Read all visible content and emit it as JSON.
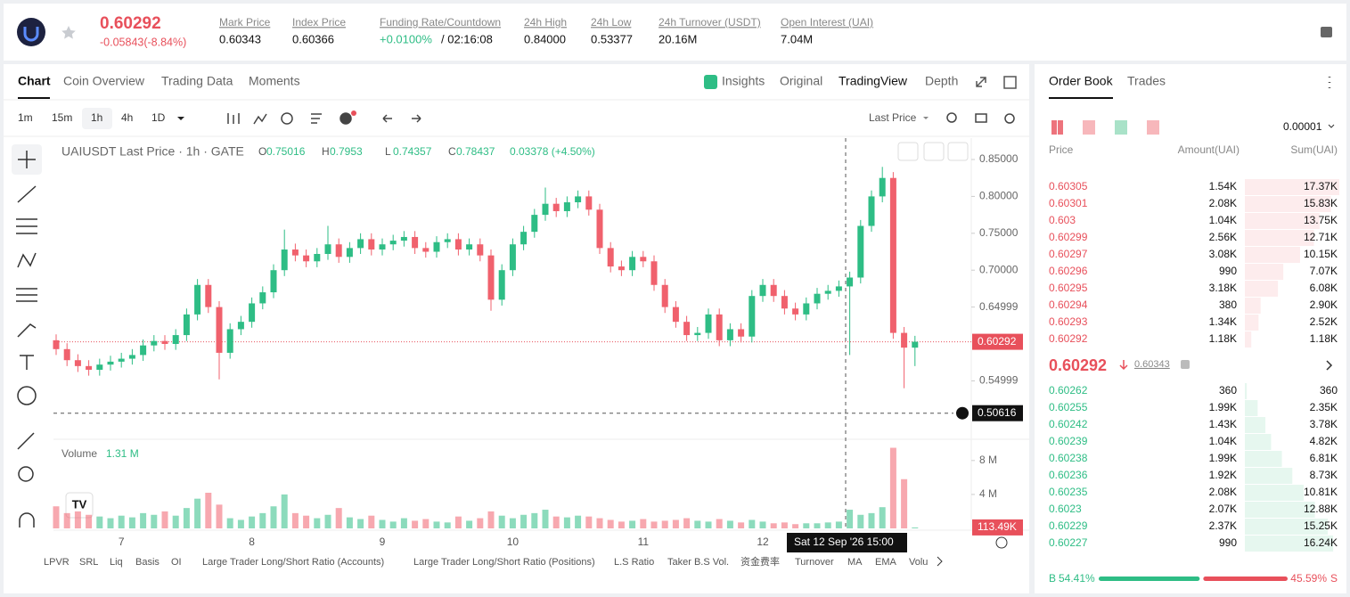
{
  "header": {
    "price": 0.60292,
    "change": "-0.05843(-8.84%)",
    "stats": [
      {
        "label": "Mark Price",
        "value": "0.60343"
      },
      {
        "label": "Index Price",
        "value": "0.60366"
      },
      {
        "label": "Funding Rate/Countdown",
        "value": "+0.0100%",
        "extra": "/ 02:16:08"
      },
      {
        "label": "24h High",
        "value": "0.84000"
      },
      {
        "label": "24h Low",
        "value": "0.53377"
      },
      {
        "label": "24h Turnover (USDT)",
        "value": "20.16M"
      },
      {
        "label": "Open Interest (UAI)",
        "value": "7.04M"
      }
    ]
  },
  "tabs": [
    "Chart",
    "Coin Overview",
    "Trading Data",
    "Moments"
  ],
  "view_tabs": [
    "Insights",
    "Original",
    "TradingView",
    "Depth"
  ],
  "intervals": [
    "1m",
    "15m",
    "1h",
    "4h",
    "1D"
  ],
  "price_type": "Last Price",
  "chart_data": {
    "type": "candlestick",
    "title": "UAIUSDT Last Price · 1h · GATE",
    "ohlc": [
      {
        "label": "O",
        "value": 0.75016
      },
      {
        "label": "H",
        "value": 0.7953
      },
      {
        "label": "L",
        "value": 0.74357
      },
      {
        "label": "C",
        "value": 0.78437
      }
    ],
    "ohlc_change": "0.03378 (+4.50%)",
    "up_color": "#2ebd85",
    "down_color": "#f0616d",
    "categories": [
      null,
      null,
      null,
      null,
      null,
      null,
      "7",
      null,
      null,
      null,
      null,
      null,
      null,
      null,
      null,
      null,
      null,
      null,
      "8",
      null,
      null,
      null,
      null,
      null,
      null,
      null,
      null,
      null,
      null,
      null,
      "9",
      null,
      null,
      null,
      null,
      null,
      null,
      null,
      null,
      null,
      null,
      null,
      "10",
      null,
      null,
      null,
      null,
      null,
      null,
      null,
      null,
      null,
      null,
      null,
      "11",
      null,
      null,
      null,
      null,
      null,
      null,
      null,
      null,
      null,
      null,
      "12",
      null,
      null,
      null,
      null,
      null,
      null,
      null,
      null,
      null,
      null,
      null,
      null,
      null,
      null
    ],
    "open": [
      0.605,
      0.593,
      0.578,
      0.57,
      0.565,
      0.572,
      0.576,
      0.58,
      0.585,
      0.598,
      0.604,
      0.6,
      0.612,
      0.64,
      0.68,
      0.65,
      0.588,
      0.62,
      0.63,
      0.655,
      0.67,
      0.7,
      0.728,
      0.72,
      0.712,
      0.722,
      0.735,
      0.718,
      0.73,
      0.742,
      0.728,
      0.735,
      0.74,
      0.745,
      0.73,
      0.725,
      0.738,
      0.742,
      0.728,
      0.735,
      0.72,
      0.66,
      0.7,
      0.735,
      0.752,
      0.775,
      0.79,
      0.78,
      0.792,
      0.8,
      0.782,
      0.73,
      0.705,
      0.7,
      0.718,
      0.712,
      0.68,
      0.65,
      0.63,
      0.612,
      0.615,
      0.64,
      0.605,
      0.62,
      0.61,
      0.665,
      0.68,
      0.665,
      0.648,
      0.64,
      0.655,
      0.668,
      0.672,
      0.678,
      0.69,
      0.76,
      0.8,
      0.825,
      0.615,
      0.595
    ],
    "high": [
      0.613,
      0.601,
      0.586,
      0.578,
      0.58,
      0.584,
      0.588,
      0.593,
      0.606,
      0.612,
      0.612,
      0.62,
      0.648,
      0.688,
      0.688,
      0.658,
      0.628,
      0.638,
      0.663,
      0.678,
      0.708,
      0.755,
      0.736,
      0.728,
      0.73,
      0.76,
      0.743,
      0.738,
      0.75,
      0.75,
      0.743,
      0.748,
      0.753,
      0.753,
      0.738,
      0.746,
      0.75,
      0.75,
      0.743,
      0.743,
      0.728,
      0.708,
      0.743,
      0.76,
      0.783,
      0.812,
      0.798,
      0.8,
      0.808,
      0.808,
      0.79,
      0.738,
      0.713,
      0.726,
      0.726,
      0.72,
      0.688,
      0.658,
      0.638,
      0.623,
      0.648,
      0.648,
      0.628,
      0.628,
      0.673,
      0.688,
      0.688,
      0.673,
      0.656,
      0.663,
      0.676,
      0.68,
      0.686,
      0.698,
      0.768,
      0.808,
      0.84,
      0.833,
      0.623,
      0.611
    ],
    "low": [
      0.585,
      0.57,
      0.562,
      0.557,
      0.557,
      0.564,
      0.568,
      0.572,
      0.577,
      0.59,
      0.592,
      0.592,
      0.604,
      0.632,
      0.642,
      0.552,
      0.58,
      0.612,
      0.622,
      0.647,
      0.662,
      0.692,
      0.712,
      0.704,
      0.704,
      0.714,
      0.71,
      0.71,
      0.722,
      0.72,
      0.72,
      0.727,
      0.732,
      0.722,
      0.717,
      0.717,
      0.73,
      0.72,
      0.72,
      0.712,
      0.645,
      0.652,
      0.692,
      0.727,
      0.744,
      0.767,
      0.772,
      0.772,
      0.784,
      0.774,
      0.722,
      0.697,
      0.692,
      0.692,
      0.704,
      0.672,
      0.642,
      0.622,
      0.604,
      0.604,
      0.607,
      0.597,
      0.597,
      0.602,
      0.602,
      0.657,
      0.657,
      0.64,
      0.632,
      0.632,
      0.647,
      0.66,
      0.664,
      0.585,
      0.682,
      0.752,
      0.792,
      0.607,
      0.54,
      0.57
    ],
    "close": [
      0.593,
      0.578,
      0.57,
      0.565,
      0.572,
      0.576,
      0.58,
      0.585,
      0.598,
      0.604,
      0.6,
      0.612,
      0.64,
      0.68,
      0.65,
      0.588,
      0.62,
      0.63,
      0.655,
      0.67,
      0.7,
      0.728,
      0.72,
      0.712,
      0.722,
      0.735,
      0.718,
      0.73,
      0.742,
      0.728,
      0.735,
      0.74,
      0.745,
      0.73,
      0.725,
      0.738,
      0.742,
      0.728,
      0.735,
      0.72,
      0.66,
      0.7,
      0.735,
      0.752,
      0.775,
      0.79,
      0.78,
      0.792,
      0.8,
      0.782,
      0.73,
      0.705,
      0.7,
      0.718,
      0.712,
      0.68,
      0.65,
      0.63,
      0.612,
      0.615,
      0.64,
      0.605,
      0.62,
      0.61,
      0.665,
      0.68,
      0.665,
      0.648,
      0.64,
      0.655,
      0.668,
      0.672,
      0.678,
      0.69,
      0.76,
      0.8,
      0.825,
      0.615,
      0.595,
      0.603
    ],
    "ylim": [
      0.4744,
      0.879
    ],
    "yticks": [
      {
        "value": 0.85,
        "label": "0.85000"
      },
      {
        "value": 0.8,
        "label": "0.80000"
      },
      {
        "value": 0.75,
        "label": "0.75000"
      },
      {
        "value": 0.7,
        "label": "0.70000"
      },
      0.64999,
      0.54999
    ],
    "last_price": 0.60292,
    "crosshair_price": 0.50616,
    "crosshair_label": "Sat 12 Sep '26   15:00",
    "volume": {
      "title": "Volume",
      "current": "1.31 M",
      "ylim": [
        0,
        10.5
      ],
      "yticks": [
        {
          "value": 4,
          "label": "4 M"
        },
        {
          "value": 8,
          "label": "8 M"
        }
      ],
      "values": [
        2.6,
        1.8,
        2.0,
        1.6,
        1.4,
        1.2,
        1.5,
        1.3,
        1.8,
        1.6,
        2.0,
        1.5,
        2.4,
        3.5,
        4.2,
        2.8,
        1.2,
        1.0,
        1.4,
        1.8,
        2.6,
        4.0,
        1.8,
        1.5,
        1.2,
        1.6,
        2.4,
        1.3,
        1.1,
        1.5,
        1.0,
        0.8,
        1.2,
        0.9,
        1.1,
        0.8,
        0.7,
        1.4,
        0.9,
        1.2,
        2.0,
        1.5,
        1.2,
        1.6,
        1.8,
        2.2,
        1.4,
        1.3,
        1.5,
        1.4,
        1.2,
        1.0,
        0.8,
        0.9,
        1.1,
        0.8,
        0.9,
        1.0,
        1.2,
        0.9,
        0.8,
        1.1,
        0.9,
        0.7,
        1.0,
        0.8,
        0.6,
        0.7,
        0.5,
        0.6,
        0.6,
        0.7,
        0.8,
        2.2,
        1.6,
        1.8,
        2.5,
        9.5,
        5.8,
        0.11349
      ],
      "last": {
        "value": 0.11349,
        "label": "113.49K"
      }
    }
  },
  "indicators": [
    "LPVR",
    "SRL",
    "Liq",
    "Basis",
    "OI",
    "Large Trader Long/Short Ratio (Accounts)",
    "Large Trader Long/Short Ratio (Positions)",
    "L.S Ratio",
    "Taker B.S Vol.",
    "资金费率",
    "Turnover",
    "MA",
    "EMA",
    "Volu"
  ],
  "order_book": {
    "tabs": [
      "Order Book",
      "Trades"
    ],
    "precision": "0.00001",
    "headers": [
      "Price",
      "Amount(UAI)",
      "Sum(UAI)"
    ],
    "asks": {
      "price": [
        0.60305,
        0.60301,
        0.603,
        0.60299,
        0.60297,
        0.60296,
        0.60295,
        0.60294,
        0.60293,
        0.60292
      ],
      "amount": [
        "1.54K",
        "2.08K",
        "1.04K",
        "2.56K",
        "3.08K",
        990,
        "3.18K",
        380,
        "1.34K",
        "1.18K"
      ],
      "sum": [
        17370,
        15830,
        13750,
        12710,
        10150,
        7070,
        6080,
        2900,
        2520,
        1180
      ],
      "sum_labels": [
        "17.37K",
        "15.83K",
        "13.75K",
        "12.71K",
        "10.15K",
        "7.07K",
        "6.08K",
        "2.90K",
        "2.52K",
        "1.18K"
      ]
    },
    "last_price": 0.60292,
    "mark_price": 0.60343,
    "bids": {
      "price": [
        0.60262,
        0.60255,
        0.60242,
        0.60239,
        0.60238,
        0.60236,
        0.60235,
        0.6023,
        0.60229,
        0.60227
      ],
      "amount": [
        360,
        "1.99K",
        "1.43K",
        "1.04K",
        "1.99K",
        "1.92K",
        "2.08K",
        "2.07K",
        "2.37K",
        990
      ],
      "sum": [
        360,
        2350,
        3780,
        4820,
        6810,
        8730,
        10810,
        12880,
        15250,
        16240
      ],
      "sum_labels": [
        "360",
        "2.35K",
        "3.78K",
        "4.82K",
        "6.81K",
        "8.73K",
        "10.81K",
        "12.88K",
        "15.25K",
        "16.24K"
      ]
    },
    "buy": {
      "label": "B",
      "value": 54.41,
      "text": "54.41%"
    },
    "sell": {
      "label": "S",
      "value": 45.59,
      "text": "45.59%"
    }
  }
}
